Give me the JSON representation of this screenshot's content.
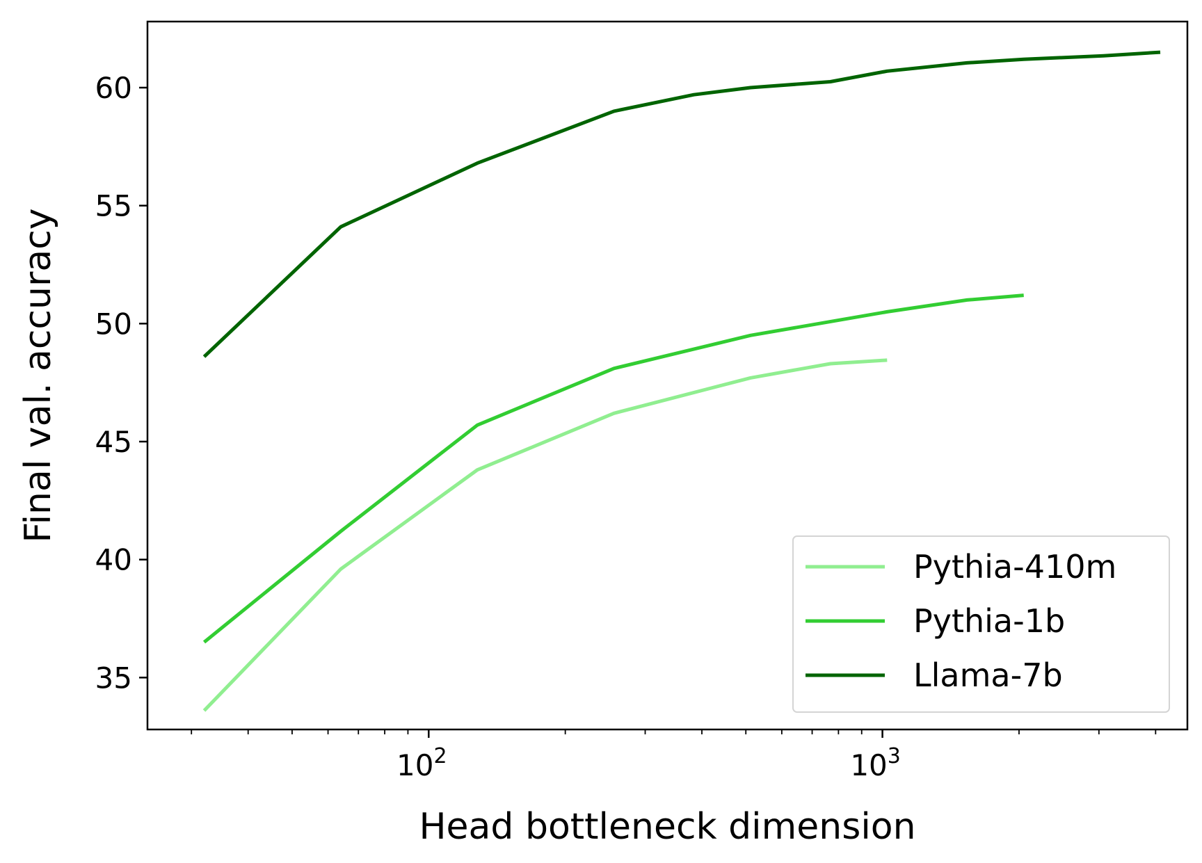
{
  "chart_data": {
    "type": "line",
    "title": "",
    "xlabel": "Head bottleneck dimension",
    "ylabel": "Final val. accuracy",
    "xscale": "log",
    "xlim": [
      24,
      4700
    ],
    "ylim": [
      32.8,
      62.8
    ],
    "grid": false,
    "legend_position": "bottom-right",
    "x_ticks": [
      {
        "value": 100,
        "base": "10",
        "exp": "2"
      },
      {
        "value": 1000,
        "base": "10",
        "exp": "3"
      }
    ],
    "y_ticks": [
      35,
      40,
      45,
      50,
      55,
      60
    ],
    "series": [
      {
        "name": "Pythia-410m",
        "color": "#90ee90",
        "x": [
          32,
          64,
          128,
          256,
          512,
          768,
          1024
        ],
        "y": [
          33.6,
          39.6,
          43.8,
          46.2,
          47.7,
          48.3,
          48.45
        ]
      },
      {
        "name": "Pythia-1b",
        "color": "#32cd32",
        "x": [
          32,
          64,
          128,
          256,
          512,
          1024,
          1536,
          2048
        ],
        "y": [
          36.5,
          41.2,
          45.7,
          48.1,
          49.5,
          50.5,
          51.0,
          51.2
        ]
      },
      {
        "name": "Llama-7b",
        "color": "#006400",
        "x": [
          32,
          64,
          128,
          256,
          384,
          512,
          768,
          1024,
          1536,
          2048,
          3072,
          4096
        ],
        "y": [
          48.6,
          54.1,
          56.8,
          59.0,
          59.7,
          60.0,
          60.25,
          60.7,
          61.05,
          61.2,
          61.35,
          61.5
        ]
      }
    ]
  }
}
